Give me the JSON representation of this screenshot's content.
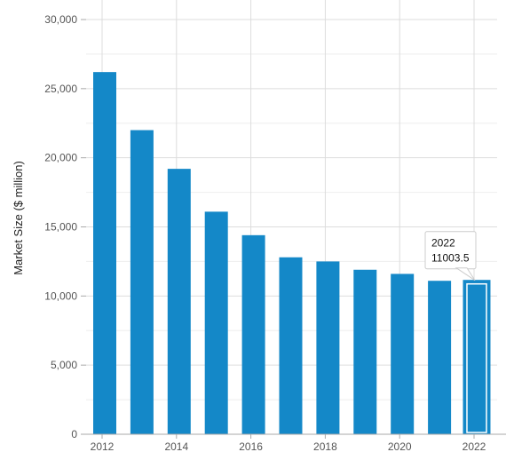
{
  "chart_data": {
    "type": "bar",
    "title": "",
    "xlabel": "",
    "ylabel": "Market Size ($ million)",
    "categories": [
      "2012",
      "2013",
      "2014",
      "2015",
      "2016",
      "2017",
      "2018",
      "2019",
      "2020",
      "2021",
      "2022"
    ],
    "values": [
      26200,
      22000,
      19200,
      16100,
      14400,
      12800,
      12500,
      11900,
      11600,
      11100,
      11003.5
    ],
    "ylim": [
      0,
      30000
    ],
    "yticks": [
      0,
      5000,
      10000,
      15000,
      20000,
      25000,
      30000
    ],
    "ytick_labels": [
      "0",
      "5,000",
      "10,000",
      "15,000",
      "20,000",
      "25,000",
      "30,000"
    ],
    "xtick_labels": [
      "2012",
      "2014",
      "2016",
      "2018",
      "2020",
      "2022"
    ],
    "grid": true,
    "bar_color": "#1488c8",
    "highlight": {
      "category": "2022",
      "value_text": "11003.5"
    }
  }
}
